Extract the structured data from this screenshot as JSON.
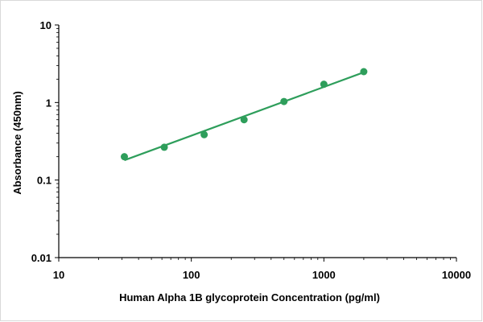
{
  "chart_data": {
    "type": "scatter",
    "title": "",
    "xlabel": "Human Alpha 1B glycoprotein Concentration (pg/ml)",
    "ylabel": "Absorbance (450nm)",
    "x_scale": "log",
    "y_scale": "log",
    "xlim": [
      10,
      10000
    ],
    "ylim": [
      0.01,
      10
    ],
    "x_ticks": [
      10,
      100,
      1000,
      10000
    ],
    "y_ticks": [
      0.01,
      0.1,
      1,
      10
    ],
    "x_tick_labels": [
      "10",
      "100",
      "1000",
      "10000"
    ],
    "y_tick_labels": [
      "0.01",
      "0.1",
      "1",
      "10"
    ],
    "grid": false,
    "legend": "none",
    "series": [
      {
        "x": [
          31.25,
          62.5,
          125,
          250,
          500,
          1000,
          2000
        ],
        "y": [
          0.2,
          0.265,
          0.385,
          0.6,
          1.03,
          1.72,
          2.5
        ]
      }
    ],
    "fit_line": {
      "x": [
        31.25,
        2000
      ],
      "y": [
        0.18,
        2.45
      ]
    },
    "colors": {
      "series": "#2e9e5b",
      "axis": "#000000"
    }
  }
}
